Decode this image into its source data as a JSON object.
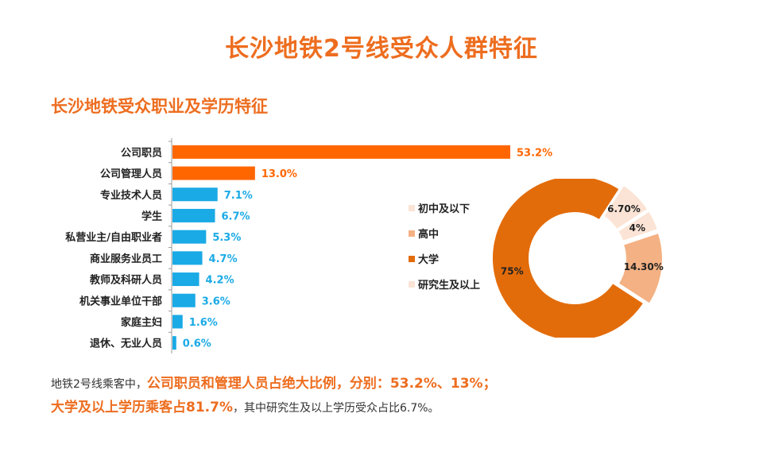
{
  "page": {
    "title": "长沙地铁2号线受众人群特征",
    "section_title": "长沙地铁受众职业及学历特征"
  },
  "colors": {
    "accent": "#ed6d1f",
    "bar_top": "#ff6600",
    "bar_rest": "#1aaae6",
    "donut": [
      "#fbe4d5",
      "#f4b183",
      "#e36c0a",
      "#fbe4d5"
    ]
  },
  "chart_data": [
    {
      "type": "bar",
      "orientation": "horizontal",
      "categories": [
        "公司职员",
        "公司管理人员",
        "专业技术人员",
        "学生",
        "私营业主/自由职业者",
        "商业服务业员工",
        "教师及科研人员",
        "机关事业单位干部",
        "家庭主妇",
        "退休、无业人员"
      ],
      "values": [
        53.2,
        13.0,
        7.1,
        6.7,
        5.3,
        4.7,
        4.2,
        3.6,
        1.6,
        0.6
      ],
      "labels": [
        "53.2%",
        "13.0%",
        "7.1%",
        "6.7%",
        "5.3%",
        "4.7%",
        "4.2%",
        "3.6%",
        "1.6%",
        "0.6%"
      ],
      "xlim": [
        0,
        53.2
      ]
    },
    {
      "type": "pie",
      "variant": "donut",
      "categories": [
        "初中及以下",
        "高中",
        "大学",
        "研究生及以上"
      ],
      "values": [
        4,
        14.3,
        75,
        6.7
      ],
      "labels": [
        "4%",
        "14.30%",
        "75%",
        "6.70%"
      ],
      "legend_position": "left"
    }
  ],
  "summary": {
    "line1_prefix": "地铁2号线乘客中，",
    "line1_highlight": "公司职员和管理人员占绝大比例，分别：53.2%、13%；",
    "line2_highlight": "大学及以上学历乘客占81.7%",
    "line2_suffix": "，其中研究生及以上学历受众占比6.7%。"
  }
}
